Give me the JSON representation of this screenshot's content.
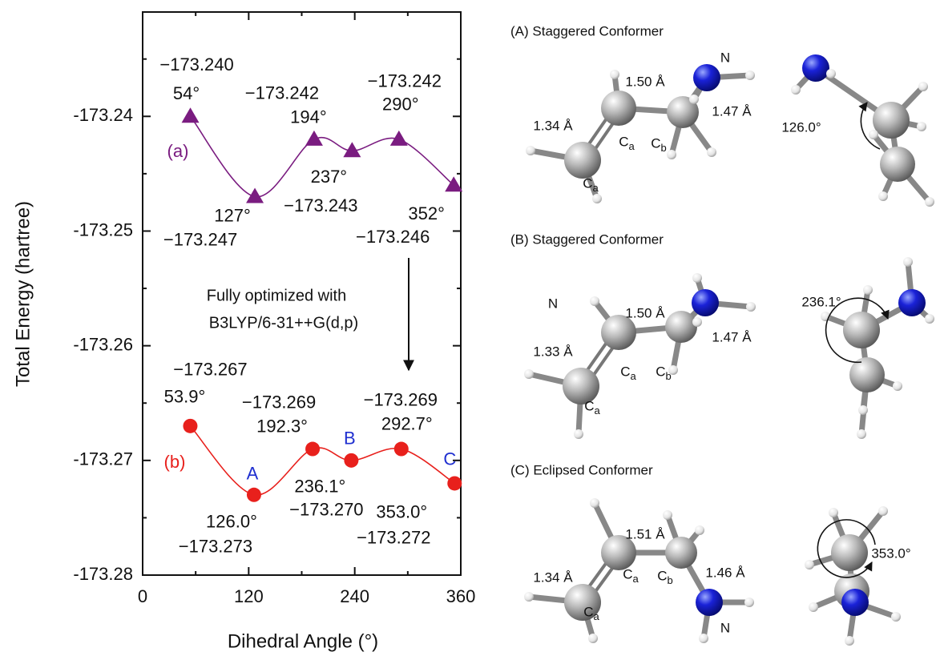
{
  "chart_data": {
    "type": "line",
    "y_label": "Total Energy (hartree)",
    "x_label": "Dihedral Angle (°)",
    "xlim": [
      0,
      360
    ],
    "ylim": [
      -173.28,
      -173.2309
    ],
    "xticks": [
      0,
      120,
      240,
      360
    ],
    "yticks": [
      -173.24,
      -173.25,
      -173.26,
      -173.27,
      -173.28
    ],
    "xminorticks": [
      60,
      180,
      300
    ],
    "yminorticks": [
      -173.235,
      -173.245,
      -173.255,
      -173.265,
      -173.275
    ],
    "series": [
      {
        "name": "(a)",
        "color": "#7a1c80",
        "marker": "triangle",
        "x": [
          54,
          127,
          194,
          237,
          290,
          352
        ],
        "x_labels": [
          "54°",
          "127°",
          "194°",
          "237°",
          "290°",
          "352°"
        ],
        "values": [
          -173.24,
          -173.247,
          -173.242,
          -173.243,
          -173.242,
          -173.246
        ],
        "value_labels": [
          "−173.240",
          "−173.247",
          "−173.242",
          "−173.243",
          "−173.242",
          "−173.246"
        ]
      },
      {
        "name": "(b)",
        "color": "#e8201c",
        "marker": "circle",
        "x": [
          53.9,
          126.0,
          192.3,
          236.1,
          292.7,
          353.0
        ],
        "x_labels": [
          "53.9°",
          "126.0°",
          "192.3°",
          "236.1°",
          "292.7°",
          "353.0°"
        ],
        "values": [
          -173.267,
          -173.273,
          -173.269,
          -173.27,
          -173.269,
          -173.272
        ],
        "value_labels": [
          "−173.267",
          "−173.273",
          "−173.269",
          "−173.270",
          "−173.269",
          "−173.272"
        ],
        "point_labels": [
          null,
          "A",
          null,
          "B",
          null,
          "C"
        ],
        "point_label_color": "#1f2fd0"
      }
    ],
    "annotation": [
      "Fully optimized with",
      "B3LYP/6-31++G(d,p)"
    ]
  },
  "panels": [
    {
      "title": "(A) Staggered Conformer",
      "labels": [
        {
          "text": "1.50 Å"
        },
        {
          "text": "1.34 Å"
        },
        {
          "text": "1.47 Å"
        },
        {
          "text": "C",
          "sub": "a"
        },
        {
          "text": "C",
          "sub": "b"
        },
        {
          "text": "C",
          "sub": "a"
        },
        {
          "text": "N"
        }
      ],
      "angle": "126.0°"
    },
    {
      "title": "(B) Staggered Conformer",
      "labels": [
        {
          "text": "1.50 Å"
        },
        {
          "text": "1.33 Å"
        },
        {
          "text": "1.47 Å"
        },
        {
          "text": "C",
          "sub": "a"
        },
        {
          "text": "C",
          "sub": "b"
        },
        {
          "text": "C",
          "sub": "a"
        },
        {
          "text": "N"
        }
      ],
      "angle": "236.1°"
    },
    {
      "title": "(C) Eclipsed Conformer",
      "labels": [
        {
          "text": "1.51 Å"
        },
        {
          "text": "1.34 Å"
        },
        {
          "text": "1.46 Å"
        },
        {
          "text": "C",
          "sub": "a"
        },
        {
          "text": "C",
          "sub": "b"
        },
        {
          "text": "C",
          "sub": "a"
        },
        {
          "text": "N"
        }
      ],
      "angle": "353.0°"
    }
  ]
}
